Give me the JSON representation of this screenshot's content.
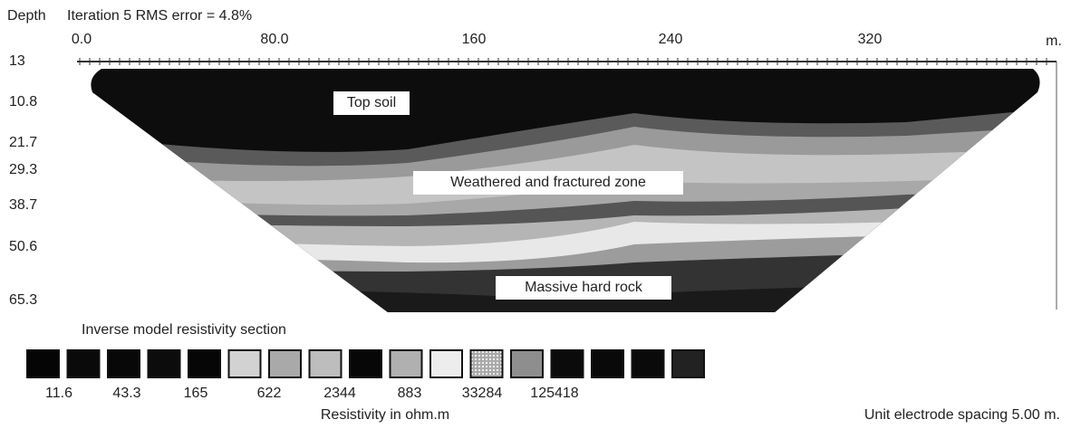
{
  "header": {
    "depth": "Depth",
    "title": "Iteration 5 RMS error = 4.8%"
  },
  "x_axis": {
    "labels": [
      "0.0",
      "80.0",
      "160",
      "240",
      "320"
    ],
    "unit": "m."
  },
  "depth_labels": [
    "13",
    "10.8",
    "21.7",
    "29.3",
    "38.7",
    "50.6",
    "65.3"
  ],
  "annotations": [
    "Top soil",
    "Weathered and fractured zone",
    "Massive hard rock"
  ],
  "legend": {
    "title": "Inverse model resistivity section",
    "labels": [
      "11.6",
      "43.3",
      "165",
      "622",
      "2344",
      "883",
      "33284",
      "125418"
    ],
    "caption": "Resistivity in ohm.m"
  },
  "footer": "Unit electrode spacing 5.00 m."
}
